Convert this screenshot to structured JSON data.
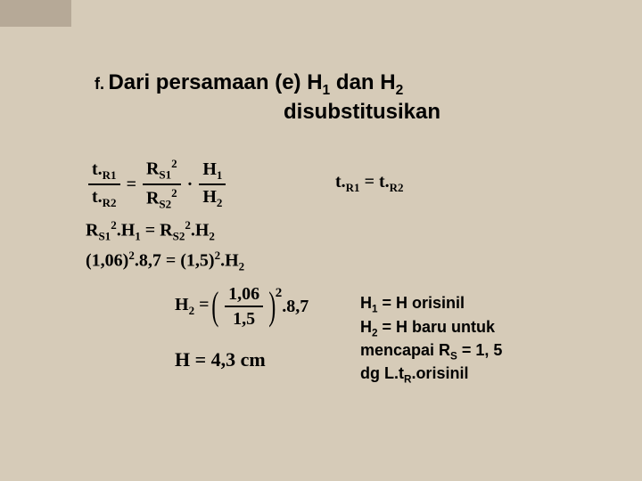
{
  "heading": {
    "lead": "f.",
    "line1_a": "Dari persamaan (e) H",
    "sub1": "1",
    "line1_b": " dan H",
    "sub2": "2",
    "line2": "disubstitusikan"
  },
  "eq1": {
    "lhs_num_a": "t.",
    "lhs_num_b": "R1",
    "lhs_den_a": "t.",
    "lhs_den_b": "R2",
    "eq": "=",
    "m1_num_a": "R",
    "m1_num_b": "S1",
    "m1_num_sup": "2",
    "m1_den_a": "R",
    "m1_den_b": "S2",
    "m1_den_sup": "2",
    "dot": "·",
    "m2_num_a": "H",
    "m2_num_b": "1",
    "m2_den_a": "H",
    "m2_den_b": "2"
  },
  "eq1b": {
    "a": "t.",
    "b": "R1",
    "eq": " = ",
    "c": "t.",
    "d": "R2"
  },
  "eq2": {
    "l1": "R",
    "l1s": "S1",
    "l1sup": "2",
    "dot1": ".H",
    "h1s": "1",
    "eq": " = ",
    "r1": "R",
    "r1s": "S2",
    "r1sup": "2",
    "dot2": ".H",
    "h2s": "2"
  },
  "eq3": {
    "lp": "(",
    "lv": "1,06",
    "rp": ")",
    "lsup": "2",
    "mul1": ".8,7",
    "eq": " = ",
    "lp2": "(",
    "rv": "1,5",
    "rp2": ")",
    "rsup": "2",
    "mul2": ".H",
    "h2s": "2"
  },
  "eq4": {
    "lhs_a": "H",
    "lhs_b": "2",
    "eq": " = ",
    "num": "1,06",
    "den": "1,5",
    "sup": "2",
    "tail": ".8,7"
  },
  "eq5": {
    "text": "H = 4,3 cm"
  },
  "note": {
    "l1_a": "H",
    "l1_s": "1",
    "l1_b": " = H orisinil",
    "l2_a": "H",
    "l2_s": "2",
    "l2_b": " = H baru untuk",
    "l3_a": "mencapai R",
    "l3_s": "S",
    "l3_b": " = 1, 5",
    "l4_a": "dg L.t",
    "l4_s": "R",
    "l4_b": ".orisinil"
  }
}
